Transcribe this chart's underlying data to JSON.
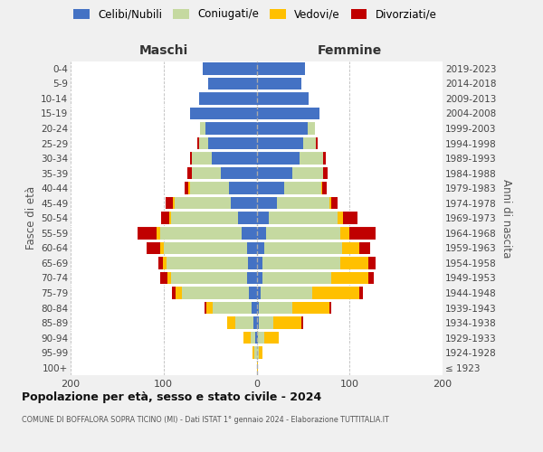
{
  "age_groups": [
    "100+",
    "95-99",
    "90-94",
    "85-89",
    "80-84",
    "75-79",
    "70-74",
    "65-69",
    "60-64",
    "55-59",
    "50-54",
    "45-49",
    "40-44",
    "35-39",
    "30-34",
    "25-29",
    "20-24",
    "15-19",
    "10-14",
    "5-9",
    "0-4"
  ],
  "birth_years": [
    "≤ 1923",
    "1924-1928",
    "1929-1933",
    "1934-1938",
    "1939-1943",
    "1944-1948",
    "1949-1953",
    "1954-1958",
    "1959-1963",
    "1964-1968",
    "1969-1973",
    "1974-1978",
    "1979-1983",
    "1984-1988",
    "1989-1993",
    "1994-1998",
    "1999-2003",
    "2004-2008",
    "2009-2013",
    "2014-2018",
    "2019-2023"
  ],
  "males": {
    "celibi": [
      0,
      0,
      1,
      3,
      5,
      8,
      10,
      9,
      10,
      16,
      20,
      28,
      30,
      38,
      48,
      52,
      55,
      72,
      62,
      52,
      58
    ],
    "coniugati": [
      0,
      2,
      5,
      20,
      42,
      72,
      82,
      88,
      90,
      88,
      72,
      60,
      42,
      32,
      22,
      10,
      6,
      0,
      0,
      0,
      0
    ],
    "vedovi": [
      0,
      2,
      8,
      9,
      7,
      7,
      4,
      4,
      4,
      4,
      2,
      2,
      1,
      0,
      0,
      0,
      0,
      0,
      0,
      0,
      0
    ],
    "divorziati": [
      0,
      0,
      0,
      0,
      2,
      4,
      8,
      5,
      14,
      20,
      9,
      8,
      4,
      4,
      2,
      2,
      0,
      0,
      0,
      0,
      0
    ]
  },
  "females": {
    "nubili": [
      0,
      0,
      1,
      2,
      2,
      4,
      6,
      6,
      8,
      10,
      13,
      22,
      30,
      38,
      46,
      50,
      55,
      68,
      56,
      48,
      52
    ],
    "coniugate": [
      0,
      2,
      7,
      16,
      36,
      56,
      74,
      84,
      84,
      80,
      74,
      56,
      40,
      34,
      26,
      14,
      8,
      0,
      0,
      0,
      0
    ],
    "vedove": [
      1,
      4,
      16,
      30,
      40,
      50,
      40,
      30,
      18,
      10,
      6,
      2,
      1,
      0,
      0,
      0,
      0,
      0,
      0,
      0,
      0
    ],
    "divorziate": [
      0,
      0,
      0,
      2,
      2,
      4,
      6,
      8,
      12,
      28,
      16,
      7,
      4,
      4,
      2,
      2,
      0,
      0,
      0,
      0,
      0
    ]
  },
  "colors": {
    "celibi": "#4472c4",
    "coniugati": "#c5d9a0",
    "vedovi": "#ffc000",
    "divorziati": "#c00000"
  },
  "legend_labels": [
    "Celibi/Nubili",
    "Coniugati/e",
    "Vedovi/e",
    "Divorziati/e"
  ],
  "title": "Popolazione per età, sesso e stato civile - 2024",
  "subtitle": "COMUNE DI BOFFALORA SOPRA TICINO (MI) - Dati ISTAT 1° gennaio 2024 - Elaborazione TUTTITALIA.IT",
  "label_maschi": "Maschi",
  "label_femmine": "Femmine",
  "ylabel_left": "Fasce di età",
  "ylabel_right": "Anni di nascita",
  "xlim": 200,
  "bg_color": "#f0f0f0",
  "plot_bg": "#ffffff",
  "grid_color": "#bbbbbb"
}
